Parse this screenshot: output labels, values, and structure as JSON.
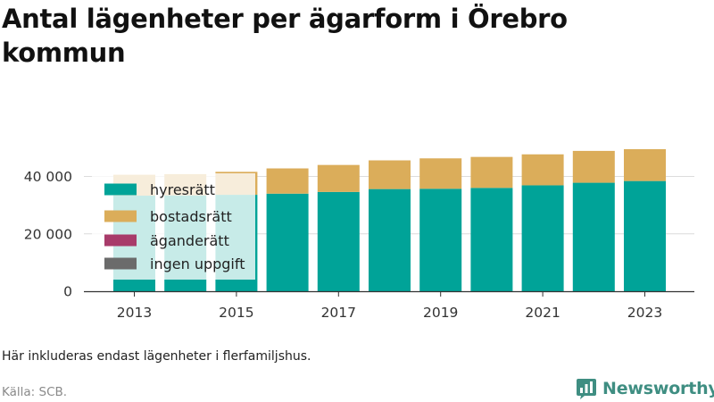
{
  "title": "Antal lägenheter per ägarform i Örebro kommun",
  "note": "Här inkluderas endast lägenheter i flerfamiljshus.",
  "source": "Källa: SCB.",
  "brand": {
    "name": "Newsworthy",
    "logo_icon": "newsworthy-chart-icon",
    "color": "#3f8e82"
  },
  "chart_data": {
    "type": "bar",
    "stacked": true,
    "categories": [
      "2013",
      "2014",
      "2015",
      "2016",
      "2017",
      "2018",
      "2019",
      "2020",
      "2021",
      "2022",
      "2023"
    ],
    "x_tick_labels": [
      "2013",
      "2015",
      "2017",
      "2019",
      "2021",
      "2023"
    ],
    "series": [
      {
        "name": "hyresrätt",
        "color": "#00a398",
        "values": [
          33300,
          33400,
          33600,
          34000,
          34600,
          35600,
          35700,
          36000,
          36900,
          37800,
          38400
        ]
      },
      {
        "name": "bostadsrätt",
        "color": "#dbad5a",
        "values": [
          7300,
          7400,
          8000,
          8800,
          9400,
          10000,
          10600,
          10800,
          10800,
          11100,
          11100
        ]
      },
      {
        "name": "äganderätt",
        "color": "#a83b6a",
        "values": [
          0,
          0,
          0,
          0,
          0,
          0,
          0,
          0,
          0,
          0,
          0
        ]
      },
      {
        "name": "ingen uppgift",
        "color": "#6b6b6b",
        "values": [
          0,
          0,
          0,
          0,
          0,
          0,
          0,
          0,
          0,
          0,
          0
        ]
      }
    ],
    "y_ticks": [
      0,
      20000,
      40000
    ],
    "y_tick_labels": [
      "0",
      "20 000",
      "40 000"
    ],
    "ylim": [
      0,
      52000
    ],
    "xlabel": "",
    "ylabel": "",
    "grid": "horizontal",
    "legend_position": "top-left, inside plot"
  }
}
